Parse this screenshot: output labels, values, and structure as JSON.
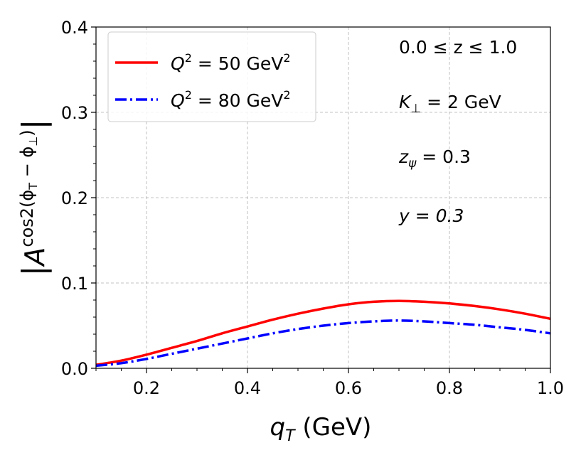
{
  "chart_data": {
    "type": "line",
    "title": "",
    "xlabel": "q_T (GeV)",
    "ylabel": "|A^{cos2(φ_T − φ_⊥)}|",
    "xlim": [
      0.1,
      1.0
    ],
    "ylim": [
      0.0,
      0.4
    ],
    "grid": true,
    "legend_position": "top-left",
    "x_ticks": [
      0.2,
      0.4,
      0.6,
      0.8,
      1.0
    ],
    "x_tick_labels": [
      "0.2",
      "0.4",
      "0.6",
      "0.8",
      "1.0"
    ],
    "y_ticks": [
      0.0,
      0.1,
      0.2,
      0.3,
      0.4
    ],
    "y_tick_labels": [
      "0.0",
      "0.1",
      "0.2",
      "0.3",
      "0.4"
    ],
    "series": [
      {
        "name": "Q^2 = 50 GeV^2",
        "color": "#ff0000",
        "style": "solid",
        "x": [
          0.1,
          0.15,
          0.2,
          0.25,
          0.3,
          0.35,
          0.4,
          0.45,
          0.5,
          0.55,
          0.6,
          0.65,
          0.7,
          0.75,
          0.8,
          0.85,
          0.9,
          0.95,
          1.0
        ],
        "values": [
          0.004,
          0.009,
          0.016,
          0.024,
          0.032,
          0.041,
          0.049,
          0.057,
          0.064,
          0.07,
          0.075,
          0.078,
          0.079,
          0.078,
          0.076,
          0.073,
          0.069,
          0.064,
          0.058
        ]
      },
      {
        "name": "Q^2 = 80 GeV^2",
        "color": "#0000ff",
        "style": "dashdot",
        "x": [
          0.1,
          0.15,
          0.2,
          0.25,
          0.3,
          0.35,
          0.4,
          0.45,
          0.5,
          0.55,
          0.6,
          0.65,
          0.7,
          0.75,
          0.8,
          0.85,
          0.9,
          0.95,
          1.0
        ],
        "values": [
          0.003,
          0.006,
          0.011,
          0.017,
          0.023,
          0.029,
          0.035,
          0.041,
          0.046,
          0.05,
          0.053,
          0.055,
          0.056,
          0.055,
          0.053,
          0.051,
          0.048,
          0.045,
          0.041
        ]
      }
    ],
    "legend_entries": [
      {
        "base": "Q",
        "sup": "2",
        "eq": " = 50 GeV",
        "unit_sup": "2"
      },
      {
        "base": "Q",
        "sup": "2",
        "eq": " = 80 GeV",
        "unit_sup": "2"
      }
    ],
    "annotations": {
      "z_range": "0.0 ≤ z ≤ 1.0",
      "k_perp_sym": "K",
      "k_perp_sub": "⊥",
      "k_perp_val": " = 2 GeV",
      "z_psi_sym": "z",
      "z_psi_sub": "ψ",
      "z_psi_val": " = 0.3",
      "y_val": "y = 0.3"
    },
    "axis_text": {
      "x_sym": "q",
      "x_sub": "T",
      "x_unit": " (GeV)",
      "y_bar_left": "|",
      "y_A": "A",
      "y_sup": "cos2(ϕ",
      "y_sup_sub1": "T",
      "y_sup_mid": " − ϕ",
      "y_sup_sub2": "⊥",
      "y_sup_end": ")",
      "y_bar_right": "|"
    }
  }
}
